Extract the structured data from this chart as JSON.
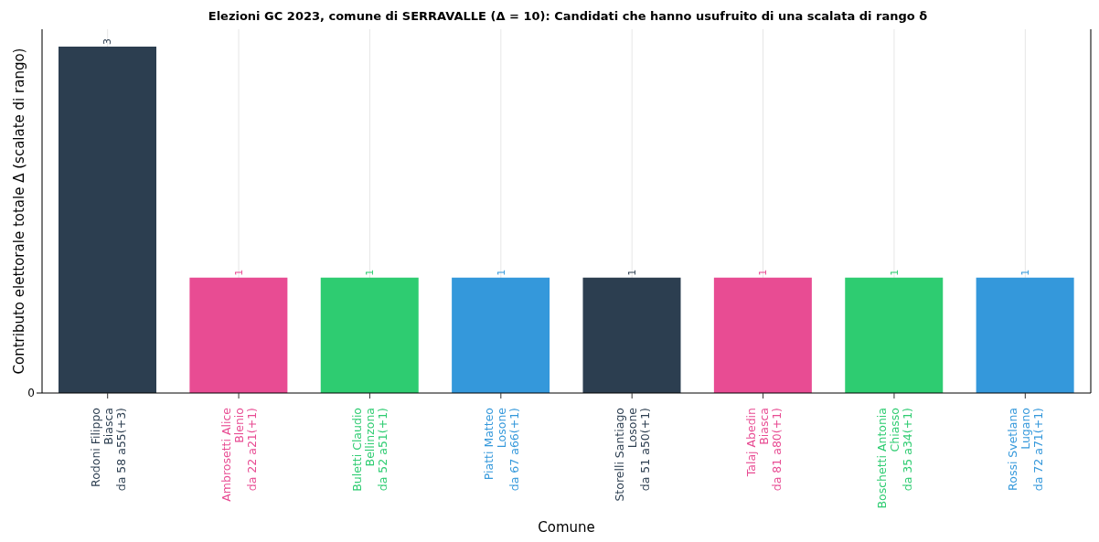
{
  "chart_data": {
    "type": "bar",
    "title": "Elezioni GC 2023, comune di SERRAVALLE (Δ = 10): Candidati che hanno usufruito di una scalata di rango δ",
    "xlabel": "Comune",
    "ylabel": "Contributo elettorale totale Δ (scalate di rango)",
    "categories": [
      "Rodoni Filippo\nBiasca\nda 58 a55(+3)",
      "Ambrosetti Alice\nBlenio\nda 22 a21(+1)",
      "Buletti Claudio\nBellinzona\nda 52 a51(+1)",
      "Piatti Matteo\nLosone\nda 67 a66(+1)",
      "Storelli Santiago\nLosone\nda 51 a50(+1)",
      "Talaj Abedin\nBiasca\nda 81 a80(+1)",
      "Boschetti Antonia\nChiasso\nda 35 a34(+1)",
      "Rossi Svetlana\nLugano\nda 72 a71(+1)"
    ],
    "values": [
      3,
      1,
      1,
      1,
      1,
      1,
      1,
      1
    ],
    "data_labels": true,
    "annotations": [
      "0"
    ],
    "colors": [
      "#2c3e50",
      "#e84c93",
      "#2ecc71",
      "#3498db",
      "#2c3e50",
      "#e84c93",
      "#2ecc71",
      "#3498db"
    ],
    "grid": "x"
  }
}
